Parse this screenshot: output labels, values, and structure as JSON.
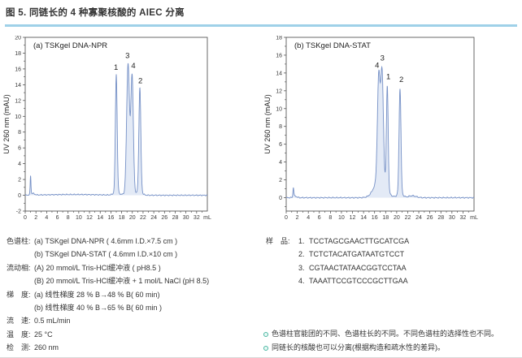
{
  "page": {
    "title": "图 5. 同链长的 4 种寡聚核酸的 AIEC 分离",
    "accent_color": "#9fd1e8",
    "divider_color": "#d9d9d9"
  },
  "chart_data": [
    {
      "type": "line",
      "title": "(a) TSKgel DNA-NPR",
      "ylabel": "UV 260 nm (mAU)",
      "xlabel": "mL",
      "xlim": [
        0,
        34
      ],
      "ylim": [
        -2,
        20
      ],
      "xticks": [
        0,
        2,
        4,
        6,
        8,
        10,
        12,
        14,
        16,
        18,
        20,
        22,
        24,
        26,
        28,
        30,
        32
      ],
      "yticks": [
        -2,
        0,
        2,
        4,
        6,
        8,
        10,
        12,
        14,
        16,
        18,
        20
      ],
      "grid": false,
      "line_color": "#7590c6",
      "fill_color": "#ccd9ee",
      "peaks": [
        {
          "c": 1.0,
          "h": 2.35,
          "s": 0.07
        },
        {
          "c": 1.35,
          "h": 0.22,
          "s": 0.35
        },
        {
          "c": 9.0,
          "h": 0.1,
          "s": 5.0
        },
        {
          "c": 17.0,
          "h": 15.0,
          "s": 0.17
        },
        {
          "c": 17.0,
          "h": 0.35,
          "s": 0.5
        },
        {
          "c": 19.2,
          "h": 16.3,
          "s": 0.26
        },
        {
          "c": 19.95,
          "h": 14.8,
          "s": 0.23
        },
        {
          "c": 19.55,
          "h": 0.4,
          "s": 0.8
        },
        {
          "c": 21.4,
          "h": 13.3,
          "s": 0.18
        },
        {
          "c": 21.4,
          "h": 0.35,
          "s": 0.5
        }
      ],
      "peak_labels": [
        {
          "text": "1",
          "x": 16.95,
          "y": 15.9
        },
        {
          "text": "3",
          "x": 19.1,
          "y": 17.4
        },
        {
          "text": "4",
          "x": 20.2,
          "y": 16.1
        },
        {
          "text": "2",
          "x": 21.5,
          "y": 14.2
        }
      ]
    },
    {
      "type": "line",
      "title": "(b) TSKgel DNA-STAT",
      "ylabel": "UV 260 nm (mAU)",
      "xlabel": "mL",
      "xlim": [
        0,
        34
      ],
      "ylim": [
        -1.5,
        18
      ],
      "xticks": [
        0,
        2,
        4,
        6,
        8,
        10,
        12,
        14,
        16,
        18,
        20,
        22,
        24,
        26,
        28,
        30,
        32
      ],
      "yticks": [
        0,
        2,
        4,
        6,
        8,
        10,
        12,
        14,
        16,
        18
      ],
      "grid": false,
      "line_color": "#7590c6",
      "fill_color": "#ccd9ee",
      "peaks": [
        {
          "c": 1.3,
          "h": 1.05,
          "s": 0.08
        },
        {
          "c": 1.6,
          "h": 0.18,
          "s": 0.3
        },
        {
          "c": 17.0,
          "h": 2.2,
          "s": 1.0
        },
        {
          "c": 16.75,
          "h": 11.5,
          "s": 0.24
        },
        {
          "c": 17.35,
          "h": 12.0,
          "s": 0.24
        },
        {
          "c": 18.3,
          "h": 11.6,
          "s": 0.16
        },
        {
          "c": 20.6,
          "h": 11.8,
          "s": 0.17
        },
        {
          "c": 20.6,
          "h": 0.5,
          "s": 0.5
        },
        {
          "c": 22.8,
          "h": 0.22,
          "s": 0.7
        }
      ],
      "peak_labels": [
        {
          "text": "4",
          "x": 16.45,
          "y": 14.6
        },
        {
          "text": "3",
          "x": 17.4,
          "y": 15.4
        },
        {
          "text": "1",
          "x": 18.5,
          "y": 13.3
        },
        {
          "text": "2",
          "x": 20.85,
          "y": 13.0
        }
      ]
    }
  ],
  "conditions": {
    "rows": [
      {
        "label": "色谱柱:",
        "lines": [
          "(a) TSKgel DNA-NPR ( 4.6mm I.D.×7.5 cm )",
          "(b) TSKgel DNA-STAT ( 4.6mm I.D.×10 cm )"
        ]
      },
      {
        "label": "流动相:",
        "lines": [
          "(A) 20 mmol/L Tris-HCl缓冲液 ( pH8.5 )",
          "(B) 20 mmol/L Tris-HCl缓冲液 + 1 mol/L NaCl (pH 8.5)"
        ]
      },
      {
        "label": "梯　度:",
        "lines": [
          "(a) 线性梯度 28 % B→48 % B( 60 min)",
          "(b) 线性梯度 40 % B→65 % B( 60 min )"
        ]
      },
      {
        "label": "流　速:",
        "lines": [
          "0.5 mL/min"
        ]
      },
      {
        "label": "温　度:",
        "lines": [
          "25 °C"
        ]
      },
      {
        "label": "检　测:",
        "lines": [
          "260 nm"
        ]
      }
    ]
  },
  "samples": {
    "label": "样　品:",
    "items": [
      {
        "num": "1.",
        "seq": "TCCTAGCGAACTTGCATCGA"
      },
      {
        "num": "2.",
        "seq": "TCTCTACATGATAATGTCCT"
      },
      {
        "num": "3.",
        "seq": "CGTAACTATAACGGTCCTAA"
      },
      {
        "num": "4.",
        "seq": "TAAATTCCGTCCCGCTTGAA"
      }
    ]
  },
  "notes": {
    "bullet_color": "#4ab6a2",
    "items": [
      "色谱柱官能团的不同、色谱柱长的不同。不同色谱柱的选择性也不同。",
      "同链长的核酸也可以分离(根据构造和疏水性的差异)。"
    ]
  }
}
